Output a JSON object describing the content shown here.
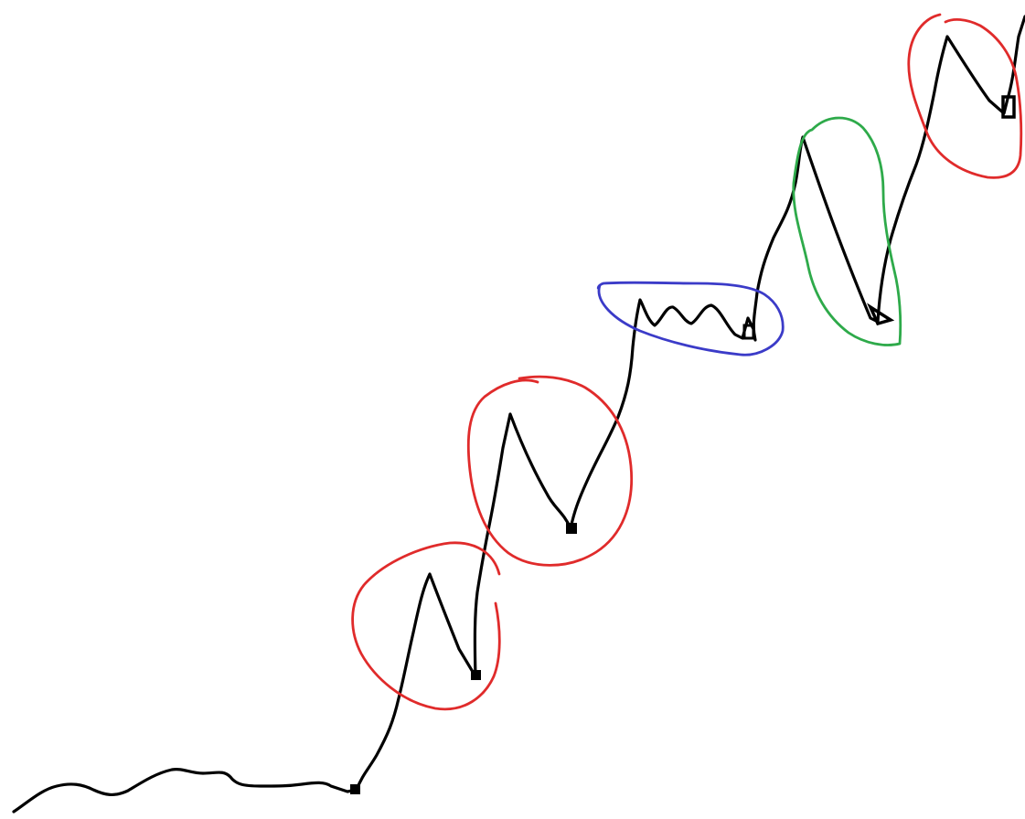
{
  "diagram": {
    "background": "#ffffff",
    "colors": {
      "line": "#000000",
      "red": "#e02b2b",
      "blue": "#3b3bc8",
      "green": "#2eaa4a"
    },
    "segments": [
      {
        "name": "flat-start",
        "color": "line"
      },
      {
        "name": "peak-1",
        "color": "line",
        "circle": "red"
      },
      {
        "name": "peak-2",
        "color": "line",
        "circle": "red"
      },
      {
        "name": "small-waves",
        "color": "line",
        "circle": "blue"
      },
      {
        "name": "peak-3",
        "color": "line",
        "circle": "green"
      },
      {
        "name": "peak-4",
        "color": "line",
        "circle": "red"
      }
    ]
  }
}
